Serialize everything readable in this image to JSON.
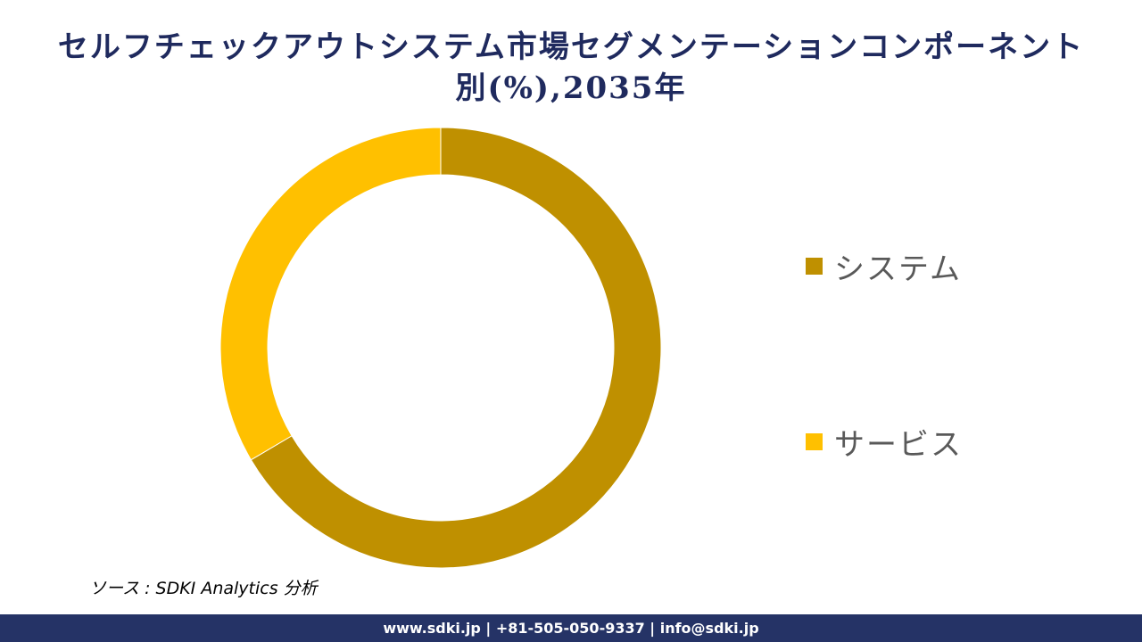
{
  "title": {
    "line1": "セルフチェックアウトシステム市場セグメンテーションコンポーネント",
    "line2": "別(%),2035年"
  },
  "chart_data": {
    "type": "pie",
    "variant": "donut",
    "categories": [
      "システム",
      "サービス"
    ],
    "values": [
      66.5,
      33.5
    ],
    "colors": [
      "#bf9000",
      "#ffc000"
    ],
    "legend": "right"
  },
  "source": "ソース : SDKI Analytics 分析",
  "footer": "www.sdki.jp | +81-505-050-9337 | info@sdki.jp"
}
